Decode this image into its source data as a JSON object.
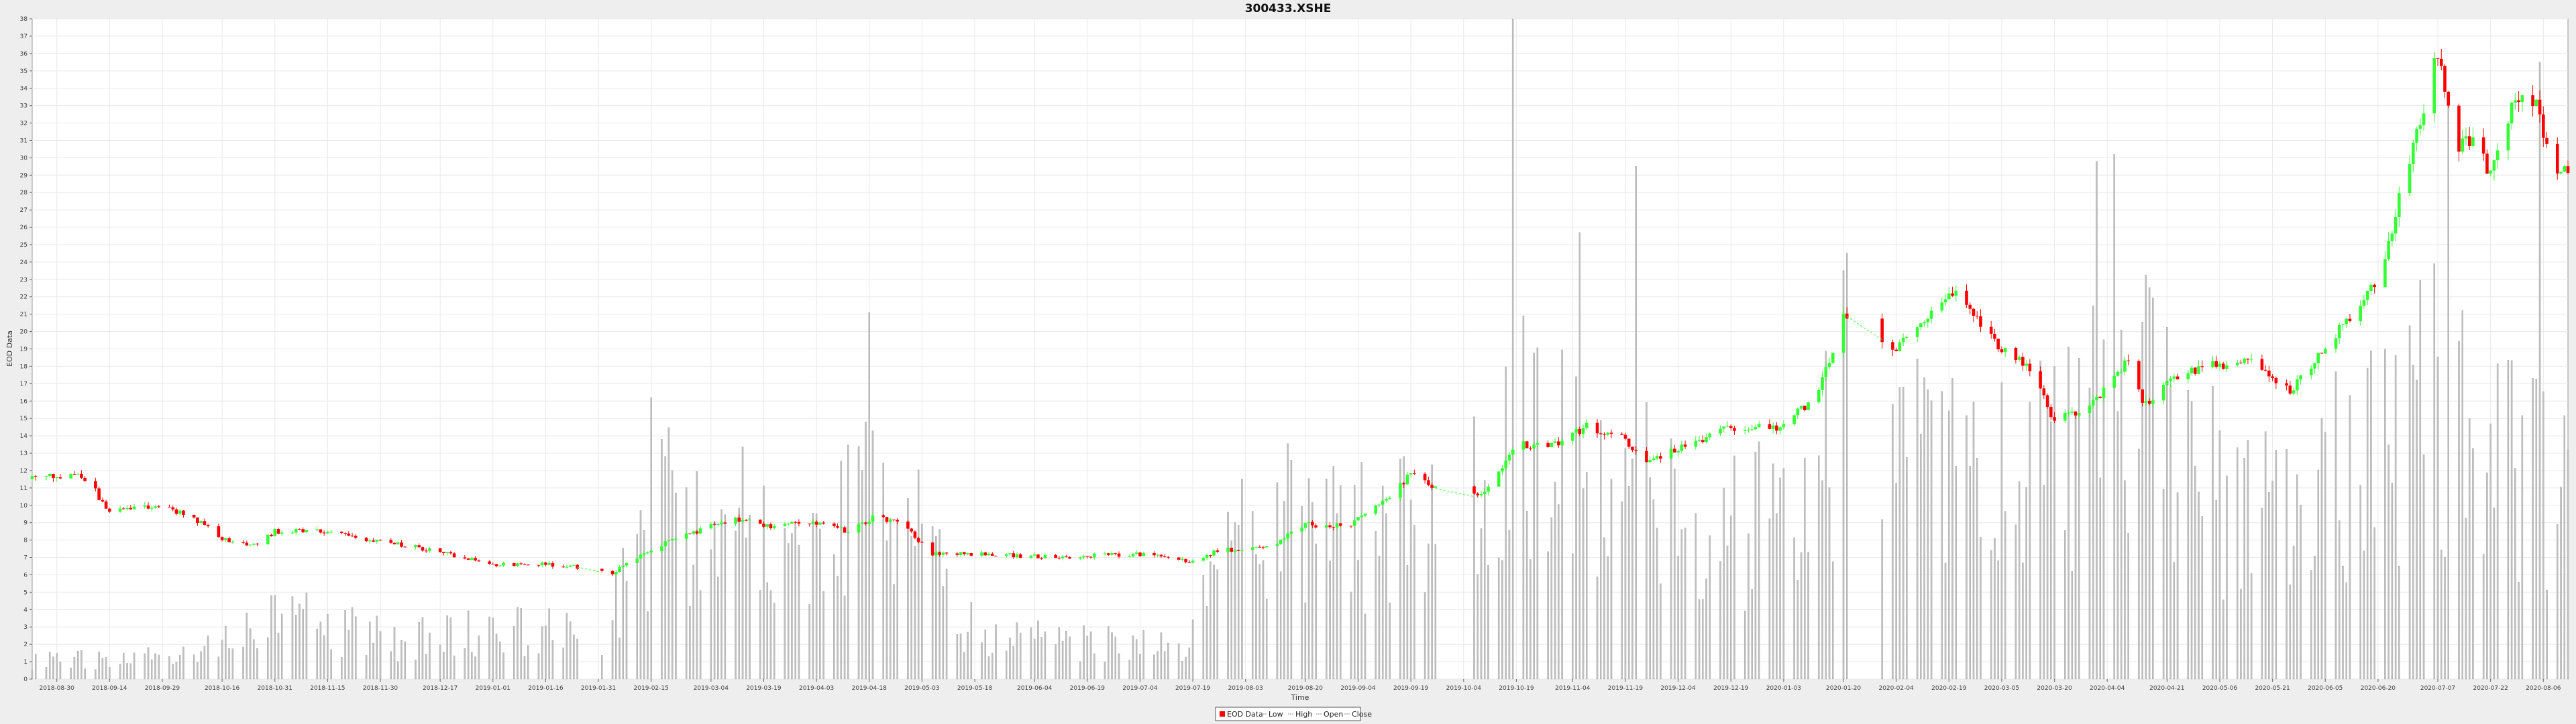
{
  "chart_data": {
    "type": "candlestick",
    "title": "300433.XSHE",
    "xlabel": "Time",
    "ylabel": "EOD Data",
    "ylim": [
      0,
      38
    ],
    "yticks": [
      0,
      1,
      2,
      3,
      4,
      5,
      6,
      7,
      8,
      9,
      10,
      11,
      12,
      13,
      14,
      15,
      16,
      17,
      18,
      19,
      20,
      21,
      22,
      23,
      24,
      25,
      26,
      27,
      28,
      29,
      30,
      31,
      32,
      33,
      34,
      35,
      36,
      37,
      38
    ],
    "xlim": [
      "2018-08-23",
      "2020-08-13"
    ],
    "xticks": [
      "2018-08-30",
      "2018-09-14",
      "2018-09-29",
      "2018-10-16",
      "2018-10-31",
      "2018-11-15",
      "2018-11-30",
      "2018-12-17",
      "2019-01-01",
      "2019-01-16",
      "2019-01-31",
      "2019-02-15",
      "2019-03-04",
      "2019-03-19",
      "2019-04-03",
      "2019-04-18",
      "2019-05-03",
      "2019-05-18",
      "2019-06-04",
      "2019-06-19",
      "2019-07-04",
      "2019-07-19",
      "2019-08-03",
      "2019-08-20",
      "2019-09-04",
      "2019-09-19",
      "2019-10-04",
      "2019-10-19",
      "2019-11-04",
      "2019-11-19",
      "2019-12-04",
      "2019-12-19",
      "2020-01-03",
      "2020-01-20",
      "2020-02-04",
      "2020-02-19",
      "2020-03-05",
      "2020-03-20",
      "2020-04-04",
      "2020-04-21",
      "2020-05-06",
      "2020-05-21",
      "2020-06-05",
      "2020-06-20",
      "2020-07-07",
      "2020-07-22",
      "2020-08-06"
    ],
    "grid": true,
    "legend_position": "bottom-center",
    "legend": [
      "EOD Data",
      "Low",
      "High",
      "Open",
      "Close"
    ],
    "colors": {
      "up": "#33ff33",
      "down": "#ff0000",
      "volume": "#c0c0c0",
      "volume_stroke": "#999999",
      "plot_bg": "#ffffff",
      "grid": "#e8e8e8"
    },
    "price_anchors": [
      [
        "2018-08-23",
        11.5
      ],
      [
        "2018-09-05",
        11.8
      ],
      [
        "2018-09-10",
        10.8
      ],
      [
        "2018-09-14",
        9.5
      ],
      [
        "2018-09-21",
        9.9
      ],
      [
        "2018-09-29",
        9.9
      ],
      [
        "2018-10-08",
        9.3
      ],
      [
        "2018-10-16",
        8.0
      ],
      [
        "2018-10-25",
        7.7
      ],
      [
        "2018-10-31",
        8.5
      ],
      [
        "2018-11-15",
        8.5
      ],
      [
        "2018-11-25",
        8.0
      ],
      [
        "2018-12-08",
        7.7
      ],
      [
        "2018-12-17",
        7.3
      ],
      [
        "2019-01-01",
        6.6
      ],
      [
        "2019-01-16",
        6.6
      ],
      [
        "2019-01-28",
        6.4
      ],
      [
        "2019-02-03",
        6.0
      ],
      [
        "2019-02-15",
        7.5
      ],
      [
        "2019-03-04",
        8.8
      ],
      [
        "2019-03-12",
        9.2
      ],
      [
        "2019-03-19",
        8.8
      ],
      [
        "2019-04-03",
        9.0
      ],
      [
        "2019-04-12",
        8.5
      ],
      [
        "2019-04-20",
        9.4
      ],
      [
        "2019-04-28",
        8.8
      ],
      [
        "2019-05-06",
        7.2
      ],
      [
        "2019-05-20",
        7.2
      ],
      [
        "2019-06-10",
        7.0
      ],
      [
        "2019-06-19",
        7.1
      ],
      [
        "2019-07-04",
        7.2
      ],
      [
        "2019-07-19",
        6.7
      ],
      [
        "2019-07-26",
        7.4
      ],
      [
        "2019-08-10",
        7.6
      ],
      [
        "2019-08-20",
        8.9
      ],
      [
        "2019-09-01",
        8.8
      ],
      [
        "2019-09-10",
        10.0
      ],
      [
        "2019-09-19",
        11.8
      ],
      [
        "2019-09-30",
        10.5
      ],
      [
        "2019-10-09",
        10.5
      ],
      [
        "2019-10-19",
        13.5
      ],
      [
        "2019-10-28",
        13.3
      ],
      [
        "2019-11-08",
        14.5
      ],
      [
        "2019-11-19",
        13.8
      ],
      [
        "2019-11-24",
        12.5
      ],
      [
        "2019-12-04",
        13.3
      ],
      [
        "2019-12-19",
        14.5
      ],
      [
        "2020-01-03",
        14.5
      ],
      [
        "2020-01-13",
        16.5
      ],
      [
        "2020-01-20",
        21.0
      ],
      [
        "2020-02-04",
        19.0
      ],
      [
        "2020-02-12",
        20.5
      ],
      [
        "2020-02-21",
        22.4
      ],
      [
        "2020-02-28",
        20.5
      ],
      [
        "2020-03-05",
        19.0
      ],
      [
        "2020-03-15",
        17.5
      ],
      [
        "2020-03-20",
        14.8
      ],
      [
        "2020-04-01",
        16.0
      ],
      [
        "2020-04-10",
        18.5
      ],
      [
        "2020-04-14",
        15.8
      ],
      [
        "2020-04-21",
        16.9
      ],
      [
        "2020-05-01",
        18.0
      ],
      [
        "2020-05-15",
        18.3
      ],
      [
        "2020-05-26",
        16.5
      ],
      [
        "2020-06-05",
        19.0
      ],
      [
        "2020-06-20",
        23.0
      ],
      [
        "2020-06-28",
        29.0
      ],
      [
        "2020-07-07",
        36.0
      ],
      [
        "2020-07-12",
        30.5
      ],
      [
        "2020-07-17",
        31.0
      ],
      [
        "2020-07-22",
        29.0
      ],
      [
        "2020-07-28",
        33.0
      ],
      [
        "2020-08-03",
        33.5
      ],
      [
        "2020-08-09",
        29.5
      ],
      [
        "2020-08-13",
        29.5
      ]
    ],
    "volume_anchors": [
      [
        "2018-08-23",
        1.5
      ],
      [
        "2018-09-20",
        1.2
      ],
      [
        "2018-10-16",
        2.6
      ],
      [
        "2018-11-05",
        4.5
      ],
      [
        "2018-12-01",
        2.8
      ],
      [
        "2019-01-16",
        3.5
      ],
      [
        "2019-02-01",
        3.0
      ],
      [
        "2019-02-15",
        11.5
      ],
      [
        "2019-03-04",
        12.0
      ],
      [
        "2019-04-05",
        8.0
      ],
      [
        "2019-04-20",
        15.0
      ],
      [
        "2019-05-15",
        4.0
      ],
      [
        "2019-06-19",
        2.5
      ],
      [
        "2019-07-19",
        3.0
      ],
      [
        "2019-07-25",
        8.0
      ],
      [
        "2019-08-20",
        12.0
      ],
      [
        "2019-09-05",
        10.0
      ],
      [
        "2019-10-10",
        14.0
      ],
      [
        "2019-10-20",
        18.0
      ],
      [
        "2019-11-10",
        16.0
      ],
      [
        "2019-12-10",
        10.0
      ],
      [
        "2020-01-10",
        12.0
      ],
      [
        "2020-01-20",
        20.0
      ],
      [
        "2020-02-10",
        16.0
      ],
      [
        "2020-03-10",
        14.0
      ],
      [
        "2020-04-10",
        20.0
      ],
      [
        "2020-05-10",
        12.0
      ],
      [
        "2020-06-10",
        15.0
      ],
      [
        "2020-07-07",
        20.0
      ],
      [
        "2020-08-13",
        12.0
      ]
    ],
    "volume_spikes": [
      [
        "2019-02-15",
        16.2
      ],
      [
        "2019-04-18",
        21.1
      ],
      [
        "2019-10-18",
        38.0
      ],
      [
        "2019-10-19",
        28.0
      ],
      [
        "2019-11-06",
        25.7
      ],
      [
        "2019-11-22",
        29.5
      ],
      [
        "2020-04-01",
        29.8
      ],
      [
        "2020-04-06",
        30.2
      ],
      [
        "2020-06-28",
        28.5
      ],
      [
        "2020-07-10",
        33.3
      ],
      [
        "2020-08-05",
        35.5
      ]
    ],
    "gaps": [
      [
        "2019-01-25",
        "2019-02-01"
      ],
      [
        "2019-09-26",
        "2019-10-07"
      ],
      [
        "2020-01-21",
        "2020-01-31"
      ]
    ]
  }
}
